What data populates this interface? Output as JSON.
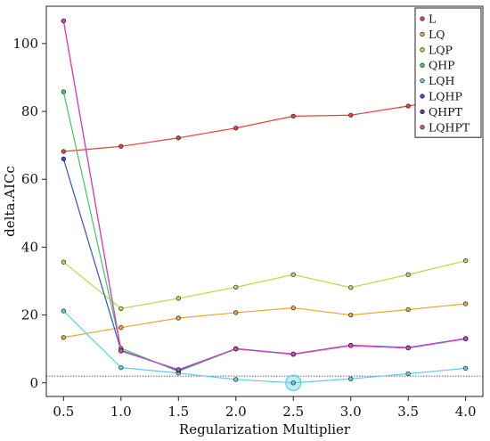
{
  "chart_data": {
    "type": "line",
    "xlabel": "Regularization Multiplier",
    "ylabel": "delta.AICc",
    "x": [
      0.5,
      1.0,
      1.5,
      2.0,
      2.5,
      3.0,
      3.5,
      4.0
    ],
    "x_tick_labels": [
      "0.5",
      "1.0",
      "1.5",
      "2.0",
      "2.5",
      "3.0",
      "3.5",
      "4.0"
    ],
    "y_ticks": [
      0,
      20,
      40,
      60,
      80,
      100
    ],
    "y_tick_labels": [
      "0",
      "20",
      "40",
      "60",
      "80",
      "100"
    ],
    "xlim": [
      0.35,
      4.15
    ],
    "ylim": [
      -4,
      111
    ],
    "reference_line": 2,
    "highlight": {
      "series": "LQH",
      "x": 2.5,
      "y": 0
    },
    "grid": false,
    "legend_position": "top-right",
    "series": [
      {
        "name": "L",
        "color": "#e8403f",
        "values": [
          68.2,
          69.7,
          72.2,
          75.1,
          78.6,
          78.9,
          81.6,
          84.4
        ]
      },
      {
        "name": "LQ",
        "color": "#e8a838",
        "values": [
          13.4,
          16.3,
          19.1,
          20.7,
          22.1,
          20.0,
          21.6,
          23.3
        ]
      },
      {
        "name": "LQP",
        "color": "#b0e040",
        "values": [
          35.6,
          21.9,
          24.9,
          28.2,
          31.9,
          28.1,
          31.9,
          36.0
        ]
      },
      {
        "name": "QHP",
        "color": "#3dcc5c",
        "values": [
          85.8,
          10.2,
          3.4,
          10.0,
          8.4,
          11.0,
          10.3,
          13.0
        ]
      },
      {
        "name": "LQH",
        "color": "#62cce8",
        "values": [
          21.2,
          4.5,
          2.9,
          1.0,
          0.0,
          1.2,
          2.7,
          4.3
        ]
      },
      {
        "name": "LQHP",
        "color": "#3850d0",
        "values": [
          66.0,
          9.6,
          3.7,
          10.1,
          8.5,
          11.1,
          10.4,
          13.1
        ]
      },
      {
        "name": "QHPT",
        "color": "#7030b0",
        "values": [
          106.7,
          9.4,
          3.9,
          10.0,
          8.5,
          11.0,
          10.3,
          13.0
        ]
      },
      {
        "name": "LQHPT",
        "color": "#e040c0",
        "values": [
          106.7,
          9.4,
          3.9,
          10.0,
          8.5,
          11.0,
          10.3,
          13.0
        ]
      }
    ]
  }
}
